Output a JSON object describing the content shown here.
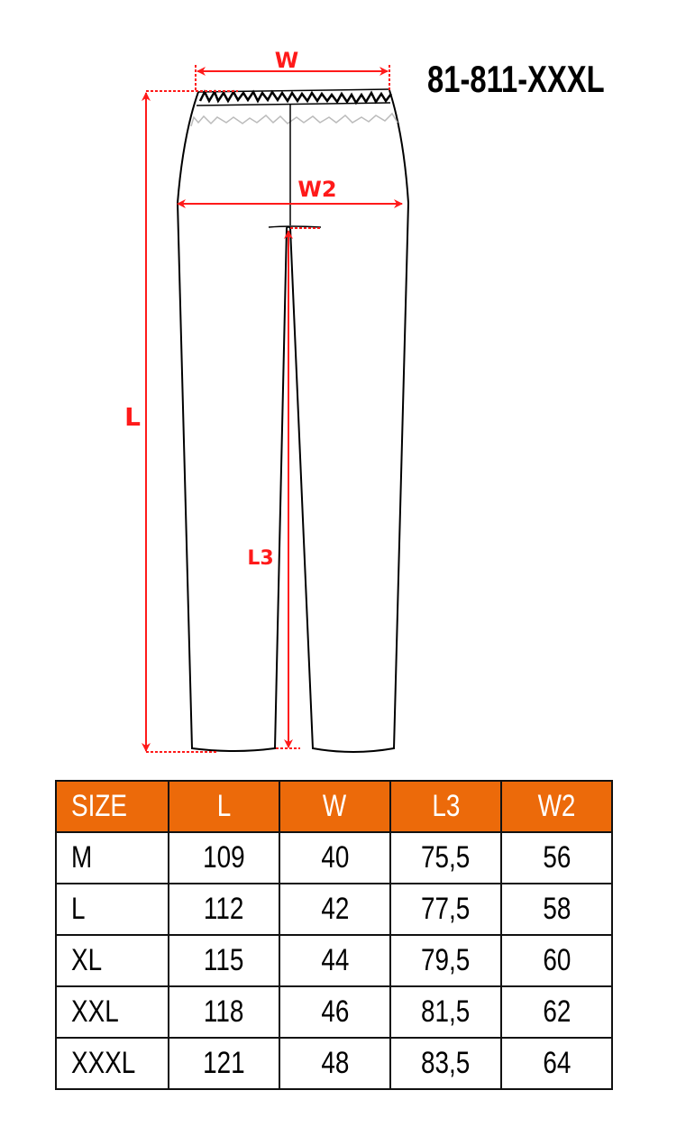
{
  "product_code": "81-811-XXXL",
  "diagram": {
    "labels": {
      "W": "W",
      "W2": "W2",
      "L": "L",
      "L3": "L3"
    },
    "colors": {
      "dimension": "#ff1a1a",
      "header": "#ec6a0a",
      "outline": "#000000"
    }
  },
  "size_table": {
    "headers": [
      "SIZE",
      "L",
      "W",
      "L3",
      "W2"
    ],
    "rows": [
      [
        "M",
        "109",
        "40",
        "75,5",
        "56"
      ],
      [
        "L",
        "112",
        "42",
        "77,5",
        "58"
      ],
      [
        "XL",
        "115",
        "44",
        "79,5",
        "60"
      ],
      [
        "XXL",
        "118",
        "46",
        "81,5",
        "62"
      ],
      [
        "XXXL",
        "121",
        "48",
        "83,5",
        "64"
      ]
    ]
  }
}
